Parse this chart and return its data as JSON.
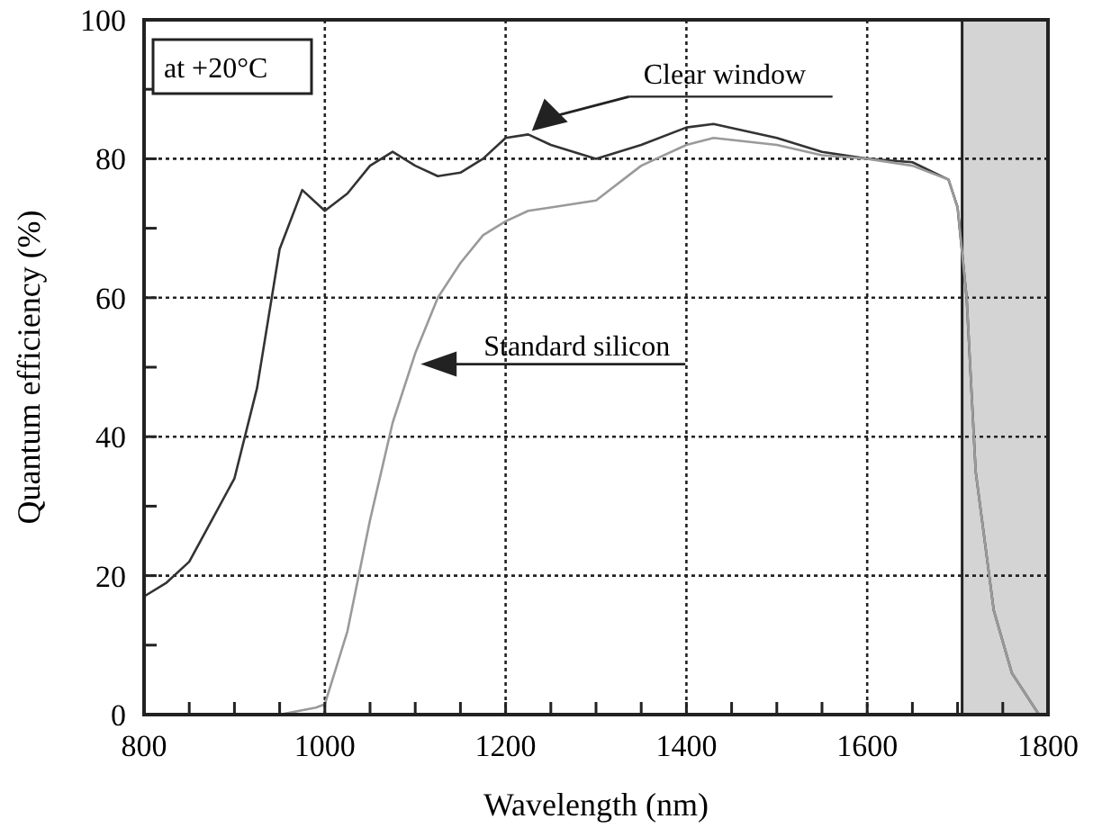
{
  "chart_data": {
    "type": "line",
    "xlabel": "Wavelength (nm)",
    "ylabel": "Quantum efficiency (%)",
    "xlim": [
      800,
      1800
    ],
    "ylim": [
      0,
      100
    ],
    "xticks": [
      800,
      {
        "value": 850,
        "label": null
      },
      {
        "value": 900,
        "label": null
      },
      {
        "value": 950,
        "label": null
      },
      1000,
      {
        "value": 1050,
        "label": null
      },
      {
        "value": 1100,
        "label": null
      },
      {
        "value": 1150,
        "label": null
      },
      1200,
      {
        "value": 1250,
        "label": null
      },
      {
        "value": 1300,
        "label": null
      },
      {
        "value": 1350,
        "label": null
      },
      1400,
      {
        "value": 1450,
        "label": null
      },
      {
        "value": 1500,
        "label": null
      },
      {
        "value": 1550,
        "label": null
      },
      1600,
      {
        "value": 1650,
        "label": null
      },
      {
        "value": 1700,
        "label": null
      },
      {
        "value": 1750,
        "label": null
      },
      1800
    ],
    "yticks": [
      0,
      {
        "value": 10,
        "label": null
      },
      20,
      {
        "value": 30,
        "label": null
      },
      40,
      {
        "value": 50,
        "label": null
      },
      60,
      {
        "value": 70,
        "label": null
      },
      80,
      {
        "value": 90,
        "label": null
      },
      100
    ],
    "grid": true,
    "series": [
      {
        "name": "Clear window",
        "color": "#333333",
        "x": [
          800,
          825,
          850,
          875,
          900,
          925,
          950,
          975,
          1000,
          1025,
          1050,
          1075,
          1100,
          1125,
          1150,
          1175,
          1200,
          1225,
          1250,
          1300,
          1350,
          1400,
          1430,
          1500,
          1550,
          1600,
          1650,
          1690,
          1700,
          1710,
          1720,
          1740,
          1760,
          1790
        ],
        "values": [
          17,
          19,
          22,
          28,
          34,
          47,
          67,
          75.5,
          72.5,
          75,
          79,
          81,
          79,
          77.5,
          78,
          80,
          83,
          83.5,
          82,
          80,
          82,
          84.5,
          85,
          83,
          81,
          80,
          79.5,
          77,
          73,
          60,
          35,
          15,
          6,
          0
        ]
      },
      {
        "name": "Standard silicon",
        "color": "#9a9a9a",
        "x": [
          800,
          950,
          990,
          1000,
          1025,
          1050,
          1075,
          1100,
          1125,
          1150,
          1175,
          1200,
          1225,
          1250,
          1300,
          1350,
          1400,
          1430,
          1500,
          1550,
          1600,
          1650,
          1690,
          1700,
          1710,
          1720,
          1740,
          1760,
          1790
        ],
        "values": [
          0,
          0,
          1,
          1.5,
          12,
          28,
          42,
          52,
          60,
          65,
          69,
          71,
          72.5,
          73,
          74,
          79,
          82,
          83,
          82,
          80.5,
          80,
          79,
          77,
          73,
          60,
          35,
          15,
          6,
          0
        ]
      }
    ],
    "bands": [
      {
        "axis": "x",
        "from": 1705,
        "to": 1800,
        "color": "#d4d4d4"
      }
    ],
    "annotations": [
      "at +20°C"
    ]
  }
}
